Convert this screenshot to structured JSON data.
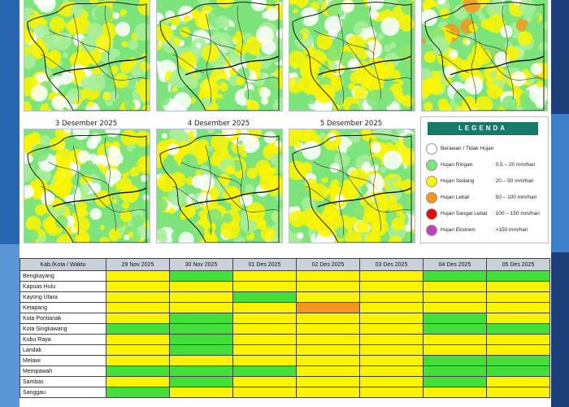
{
  "colors": {
    "berawan": "#ffffff",
    "ringan": "#7de47b",
    "sedang": "#fbf400",
    "lebat": "#f3961a",
    "sangat_lebat": "#e01010",
    "ekstrem": "#c042b8",
    "legend_header": "#167a6a",
    "table_header": "#c9d1da"
  },
  "maps_top": [
    {
      "title": ""
    },
    {
      "title": ""
    },
    {
      "title": ""
    },
    {
      "title": ""
    }
  ],
  "maps_bottom": [
    {
      "title": "3 Desember 2025"
    },
    {
      "title": "4 Desember 2025"
    },
    {
      "title": "5 Desember 2025"
    }
  ],
  "legend": {
    "title": "LEGENDA",
    "items": [
      {
        "name": "Berawan / Tidak Hujan",
        "range": "",
        "color": "#ffffff"
      },
      {
        "name": "Hujan Ringan",
        "range": ": 0.5 – 20 mm/hari",
        "color": "#7de47b"
      },
      {
        "name": "Hujan Sedang",
        "range": ": 20 – 50 mm/hari",
        "color": "#fbf400"
      },
      {
        "name": "Hujan Lebat",
        "range": ": 50 – 100 mm/hari",
        "color": "#f3961a"
      },
      {
        "name": "Hujan Sangat Lebat",
        "range": ": 100 – 150 mm/hari",
        "color": "#e01010"
      },
      {
        "name": "Hujan Ekstrem",
        "range": ": >150 mm/hari",
        "color": "#c042b8"
      }
    ]
  },
  "table": {
    "header": [
      "Kab./Kota / Waktu",
      "29 Nov 2025",
      "30 Nov 2025",
      "01 Des 2025",
      "02 Des 2025",
      "03 Des 2025",
      "04 Des 2025",
      "05 Des 2025"
    ],
    "rows": [
      {
        "name": "Bengkayang",
        "cells": [
          "hs",
          "hr",
          "hs",
          "hs",
          "hs",
          "hr",
          "hr"
        ]
      },
      {
        "name": "Kapuas Hulu",
        "cells": [
          "hs",
          "hs",
          "hs",
          "hs",
          "hs",
          "hs",
          "hs"
        ]
      },
      {
        "name": "Kayong Utara",
        "cells": [
          "hs",
          "hs",
          "hr",
          "hs",
          "hs",
          "hs",
          "hs"
        ]
      },
      {
        "name": "Ketapang",
        "cells": [
          "hs",
          "hs",
          "hs",
          "hl",
          "hs",
          "hs",
          "hs"
        ]
      },
      {
        "name": "Kota Pontianak",
        "cells": [
          "hs",
          "hr",
          "hs",
          "hs",
          "hs",
          "hr",
          "hs"
        ]
      },
      {
        "name": "Kota Singkawang",
        "cells": [
          "hr",
          "hr",
          "hs",
          "hs",
          "hs",
          "hr",
          "hr"
        ]
      },
      {
        "name": "Kubu Raya",
        "cells": [
          "hs",
          "hr",
          "hs",
          "hs",
          "hs",
          "hs",
          "hs"
        ]
      },
      {
        "name": "Landak",
        "cells": [
          "hs",
          "hr",
          "hs",
          "hs",
          "hs",
          "hs",
          "hs"
        ]
      },
      {
        "name": "Melawi",
        "cells": [
          "hs",
          "hs",
          "hs",
          "hs",
          "hs",
          "hr",
          "hr"
        ]
      },
      {
        "name": "Mempawah",
        "cells": [
          "hr",
          "hr",
          "hr",
          "hs",
          "hs",
          "hr",
          "hr"
        ]
      },
      {
        "name": "Sambas",
        "cells": [
          "hs",
          "hr",
          "hs",
          "hs",
          "hs",
          "hr",
          "hs"
        ]
      },
      {
        "name": "Sanggau",
        "cells": [
          "hr",
          "hs",
          "hs",
          "hs",
          "hs",
          "hs",
          "hs"
        ]
      }
    ]
  }
}
